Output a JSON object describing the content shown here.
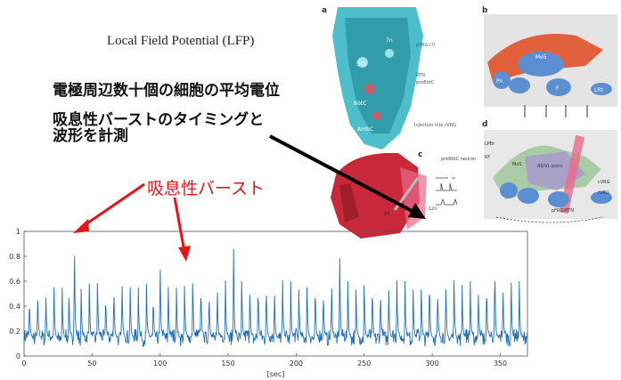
{
  "texts": {
    "lfp_title": "Local Field Potential (LFP)",
    "line1": "電極周辺数十個の細胞の平均電位",
    "line2a": "吸息性バーストのタイミングと",
    "line2b": "波形を計測",
    "burst_label": "吸息性バースト"
  },
  "figure_labels": {
    "a": "a",
    "b": "b",
    "c": "c",
    "d": "d",
    "SO": "SO",
    "BotC": "BötC",
    "AmbC": "AmbC",
    "7n": "7n",
    "pFRG": "pFRG (?)",
    "RTN": "RTN",
    "preBotC": "preBötC",
    "injection": "Injection into rVRG",
    "neuron": "preBötC neuron",
    "XII": "XII",
    "XIIn": "12n",
    "LPBr": "LPBr",
    "KF": "KF",
    "MoS": "MoS",
    "AS": "AS/VL pons",
    "pFRG_RTN": "pFRG/RTN",
    "cVRG": "cVRG",
    "rVRG": "rVRG",
    "LRt": "LRt",
    "Pn": "Pn",
    "F": "F",
    "Mo5": "Mo5"
  },
  "colors": {
    "signal": "#1f6fb8",
    "arrow_red": "#e8141a",
    "arrow_black": "#000000",
    "brain_teal": "#2fb3c2",
    "brain_red": "#c8283a",
    "panel_gray": "#dcdcdc",
    "nucleus_blue": "#5b8fd1",
    "band_red": "#e0522a"
  },
  "chart_data": {
    "type": "line",
    "xlabel": "[sec]",
    "xlim": [
      0,
      370
    ],
    "ylim": [
      0,
      1
    ],
    "xticks": [
      0,
      50,
      100,
      150,
      200,
      250,
      300,
      350
    ],
    "yticks": [
      0,
      0.2,
      0.4,
      0.6,
      0.8,
      1
    ],
    "baseline": 0.15,
    "noise_amplitude": 0.06,
    "series": [
      {
        "bursts": [
          [
            4,
            0.48
          ],
          [
            10,
            0.56
          ],
          [
            16,
            0.55
          ],
          [
            22,
            0.6
          ],
          [
            28,
            0.55
          ],
          [
            33,
            0.52
          ],
          [
            37,
            0.97
          ],
          [
            42,
            0.54
          ],
          [
            48,
            0.6
          ],
          [
            54,
            0.66
          ],
          [
            60,
            0.52
          ],
          [
            66,
            0.6
          ],
          [
            72,
            0.66
          ],
          [
            78,
            0.6
          ],
          [
            84,
            0.55
          ],
          [
            90,
            0.6
          ],
          [
            95,
            0.5
          ],
          [
            100,
            0.83
          ],
          [
            106,
            0.6
          ],
          [
            112,
            0.55
          ],
          [
            118,
            0.58
          ],
          [
            124,
            0.66
          ],
          [
            130,
            0.6
          ],
          [
            136,
            0.55
          ],
          [
            142,
            0.6
          ],
          [
            148,
            0.66
          ],
          [
            154,
            0.86
          ],
          [
            160,
            0.62
          ],
          [
            166,
            0.55
          ],
          [
            172,
            0.6
          ],
          [
            178,
            0.62
          ],
          [
            184,
            0.57
          ],
          [
            190,
            0.66
          ],
          [
            196,
            0.6
          ],
          [
            202,
            0.55
          ],
          [
            208,
            0.62
          ],
          [
            214,
            0.6
          ],
          [
            220,
            0.56
          ],
          [
            226,
            0.64
          ],
          [
            232,
            0.86
          ],
          [
            238,
            0.6
          ],
          [
            244,
            0.55
          ],
          [
            250,
            0.64
          ],
          [
            256,
            0.6
          ],
          [
            262,
            0.57
          ],
          [
            268,
            0.62
          ],
          [
            274,
            0.66
          ],
          [
            280,
            0.6
          ],
          [
            286,
            0.55
          ],
          [
            292,
            0.6
          ],
          [
            298,
            0.64
          ],
          [
            304,
            0.58
          ],
          [
            310,
            0.63
          ],
          [
            316,
            0.66
          ],
          [
            322,
            0.57
          ],
          [
            328,
            0.62
          ],
          [
            334,
            0.55
          ],
          [
            340,
            0.6
          ],
          [
            346,
            0.78
          ],
          [
            352,
            0.6
          ],
          [
            358,
            0.64
          ],
          [
            364,
            0.6
          ]
        ]
      }
    ]
  }
}
